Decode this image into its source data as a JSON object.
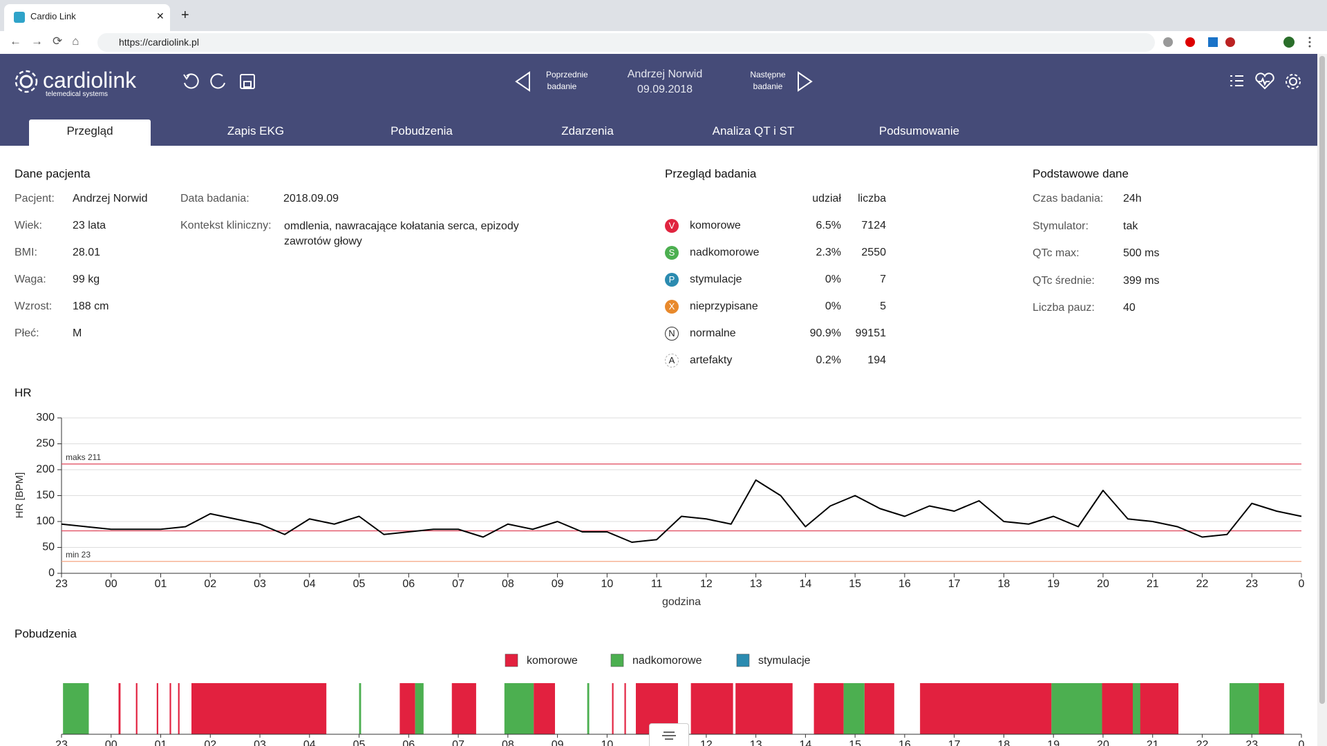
{
  "browser": {
    "tab_title": "Cardio Link",
    "url": "https://cardiolink.pl"
  },
  "header": {
    "logo": "cardiolink",
    "logo_subtitle": "telemedical systems",
    "previous": [
      "Poprzednie",
      "badanie"
    ],
    "patient": "Andrzej Norwid",
    "date": "09.09.2018",
    "next": [
      "Następne",
      "badanie"
    ]
  },
  "tabs": [
    "Przegląd",
    "Zapis EKG",
    "Pobudzenia",
    "Zdarzenia",
    "Analiza QT i ST",
    "Podsumowanie"
  ],
  "active_tab": 0,
  "patient": {
    "title": "Dane pacjenta",
    "rows": [
      [
        "Pacjent:",
        "Andrzej Norwid"
      ],
      [
        "Wiek:",
        "23 lata"
      ],
      [
        "BMI:",
        "28.01"
      ],
      [
        "Waga:",
        "99 kg"
      ],
      [
        "Wzrost:",
        "188 cm"
      ],
      [
        "Płeć:",
        "M"
      ]
    ],
    "exam_date": [
      "Data badania:",
      "2018.09.09"
    ],
    "context": [
      "Kontekst kliniczny:",
      "omdlenia, nawracające kołatania serca, epizody zawrotów głowy"
    ]
  },
  "overview": {
    "title": "Przegląd badania",
    "columns": [
      "udział",
      "liczba"
    ],
    "rows": [
      {
        "icon": "V",
        "color": "#e0243f",
        "name": "komorowe",
        "share": "6.5%",
        "count": "7124"
      },
      {
        "icon": "S",
        "color": "#4caf50",
        "name": "nadkomorowe",
        "share": "2.3%",
        "count": "2550"
      },
      {
        "icon": "P",
        "color": "#2b8bb0",
        "name": "stymulacje",
        "share": "0%",
        "count": "7"
      },
      {
        "icon": "X",
        "color": "#e8892c",
        "name": "nieprzypisane",
        "share": "0%",
        "count": "5"
      },
      {
        "icon": "N",
        "name": "normalne",
        "share": "90.9%",
        "count": "99151"
      },
      {
        "icon": "A",
        "name": "artefakty",
        "share": "0.2%",
        "count": "194"
      }
    ]
  },
  "basic": {
    "title": "Podstawowe dane",
    "rows": [
      [
        "Czas badania:",
        "24h"
      ],
      [
        "Stymulator:",
        "tak"
      ],
      [
        "QTc max:",
        "500 ms"
      ],
      [
        "QTc średnie:",
        "399 ms"
      ],
      [
        "Liczba pauz:",
        "40"
      ]
    ]
  },
  "hr_title": "HR",
  "events_title": "Pobudzenia",
  "chart_data": [
    {
      "type": "line",
      "ylabel": "HR [BPM]",
      "xlabel": "godzina",
      "color": "#000000",
      "grid": true,
      "xlim": [
        0,
        25
      ],
      "ylim": [
        0,
        300
      ],
      "yticks": [
        0,
        50,
        100,
        150,
        200,
        250,
        300
      ],
      "xticks": [
        {
          "value": 0,
          "label": "23"
        },
        {
          "value": 1,
          "label": "00"
        },
        {
          "value": 2,
          "label": "01"
        },
        {
          "value": 3,
          "label": "02"
        },
        {
          "value": 4,
          "label": "03"
        },
        {
          "value": 5,
          "label": "04"
        },
        {
          "value": 6,
          "label": "05"
        },
        {
          "value": 7,
          "label": "06"
        },
        {
          "value": 8,
          "label": "07"
        },
        {
          "value": 9,
          "label": "08"
        },
        {
          "value": 10,
          "label": "09"
        },
        {
          "value": 11,
          "label": "10"
        },
        {
          "value": 12,
          "label": "11"
        },
        {
          "value": 13,
          "label": "12"
        },
        {
          "value": 14,
          "label": "13"
        },
        {
          "value": 15,
          "label": "14"
        },
        {
          "value": 16,
          "label": "15"
        },
        {
          "value": 17,
          "label": "16"
        },
        {
          "value": 18,
          "label": "17"
        },
        {
          "value": 19,
          "label": "18"
        },
        {
          "value": 20,
          "label": "19"
        },
        {
          "value": 21,
          "label": "20"
        },
        {
          "value": 22,
          "label": "21"
        },
        {
          "value": 23,
          "label": "22"
        },
        {
          "value": 24,
          "label": "23"
        },
        {
          "value": 25,
          "label": "0"
        }
      ],
      "x": [
        0,
        0.5,
        1,
        1.5,
        2,
        2.5,
        3,
        3.5,
        4,
        4.5,
        5,
        5.5,
        6,
        6.5,
        7,
        7.5,
        8,
        8.5,
        9,
        9.5,
        10,
        10.5,
        11,
        11.5,
        12,
        12.5,
        13,
        13.5,
        14,
        14.5,
        15,
        15.5,
        16,
        16.5,
        17,
        17.5,
        18,
        18.5,
        19,
        19.5,
        20,
        20.5,
        21,
        21.5,
        22,
        22.5,
        23,
        23.5,
        24,
        24.5,
        25
      ],
      "values": [
        95,
        90,
        85,
        85,
        85,
        90,
        115,
        105,
        95,
        75,
        105,
        95,
        110,
        75,
        80,
        85,
        85,
        70,
        95,
        85,
        100,
        80,
        80,
        60,
        65,
        110,
        105,
        95,
        180,
        150,
        90,
        130,
        150,
        125,
        110,
        130,
        120,
        140,
        100,
        95,
        110,
        90,
        160,
        105,
        100,
        90,
        70,
        75,
        135,
        120,
        110
      ],
      "reference_lines": [
        {
          "value": 211,
          "label": "maks 211",
          "color": "#e0455a"
        },
        {
          "value": 82,
          "color": "#e0455a"
        },
        {
          "value": 23,
          "label": "min 23",
          "color": "#f4a582"
        }
      ]
    },
    {
      "type": "timeline",
      "xlim": [
        0,
        25
      ],
      "series": [
        {
          "name": "komorowe",
          "color": "#e2213f",
          "intervals": [
            [
              1.15,
              1.19
            ],
            [
              1.5,
              1.53
            ],
            [
              1.92,
              1.95
            ],
            [
              2.18,
              2.21
            ],
            [
              2.35,
              2.38
            ],
            [
              2.62,
              5.34
            ],
            [
              6.82,
              7.13
            ],
            [
              7.87,
              8.36
            ],
            [
              9.52,
              9.95
            ],
            [
              11.1,
              11.13
            ],
            [
              11.35,
              11.38
            ],
            [
              11.58,
              12.43
            ],
            [
              12.69,
              13.54
            ],
            [
              13.59,
              14.74
            ],
            [
              15.17,
              15.77
            ],
            [
              16.19,
              16.79
            ],
            [
              17.31,
              19.96
            ],
            [
              20.98,
              22.52
            ],
            [
              24.14,
              24.65
            ]
          ]
        },
        {
          "name": "nadkomorowe",
          "color": "#4caf50",
          "intervals": [
            [
              0.03,
              0.55
            ],
            [
              6.0,
              6.04
            ],
            [
              7.13,
              7.3
            ],
            [
              8.93,
              9.52
            ],
            [
              10.6,
              10.64
            ],
            [
              15.77,
              16.19
            ],
            [
              19.96,
              20.98
            ],
            [
              21.6,
              21.75
            ],
            [
              23.55,
              24.14
            ]
          ]
        },
        {
          "name": "stymulacje",
          "color": "#2b8bb0",
          "intervals": []
        }
      ]
    }
  ]
}
